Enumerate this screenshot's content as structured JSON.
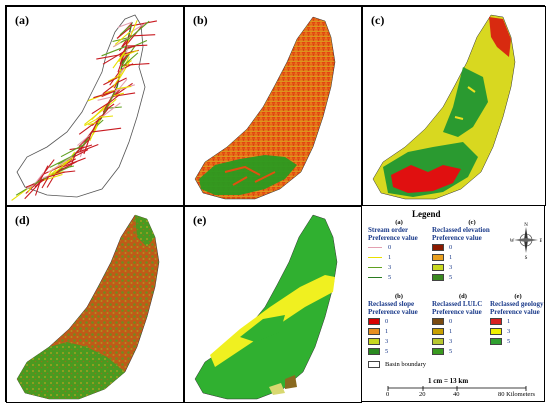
{
  "panels": {
    "a": {
      "label": "(a)"
    },
    "b": {
      "label": "(b)"
    },
    "c": {
      "label": "(c)"
    },
    "d": {
      "label": "(d)"
    },
    "e": {
      "label": "(e)"
    }
  },
  "legend": {
    "title": "Legend",
    "stream": {
      "letter": "(a)",
      "heading": "Stream order",
      "sub": "Preference value",
      "items": [
        {
          "value": "0",
          "color": "#e3a0b0"
        },
        {
          "value": "1",
          "color": "#e8e000"
        },
        {
          "value": "3",
          "color": "#60a020"
        },
        {
          "value": "5",
          "color": "#2a7a20"
        }
      ]
    },
    "elevation": {
      "letter": "(c)",
      "heading": "Reclassed elevation",
      "sub": "Preference value",
      "items": [
        {
          "value": "0",
          "color": "#8b1a00"
        },
        {
          "value": "1",
          "color": "#e8a020"
        },
        {
          "value": "3",
          "color": "#c8d820"
        },
        {
          "value": "5",
          "color": "#3a8a20"
        }
      ]
    },
    "slope": {
      "letter": "(b)",
      "heading": "Reclassed slope",
      "sub": "Preference value",
      "items": [
        {
          "value": "0",
          "color": "#d80000"
        },
        {
          "value": "1",
          "color": "#e89020"
        },
        {
          "value": "3",
          "color": "#c8d820"
        },
        {
          "value": "5",
          "color": "#2a8a20"
        }
      ]
    },
    "lulc": {
      "letter": "(d)",
      "heading": "Reclassed LULC",
      "sub": "Preference value",
      "items": [
        {
          "value": "0",
          "color": "#7a4a10"
        },
        {
          "value": "1",
          "color": "#c8a000"
        },
        {
          "value": "3",
          "color": "#b8c830"
        },
        {
          "value": "5",
          "color": "#3a9a20"
        }
      ]
    },
    "geology": {
      "letter": "(e)",
      "heading": "Reclassed geology",
      "sub": "Preference value",
      "items": [
        {
          "value": "1",
          "color": "#d82020"
        },
        {
          "value": "3",
          "color": "#f0f000"
        },
        {
          "value": "5",
          "color": "#30a030"
        }
      ]
    },
    "basin": "Basin boundary"
  },
  "compass": {
    "n": "N",
    "s": "S",
    "e": "E",
    "w": "W"
  },
  "scale": {
    "ratio": "1 cm = 13 km",
    "ticks": [
      "0",
      "20",
      "40",
      "80 Kilometers"
    ]
  }
}
